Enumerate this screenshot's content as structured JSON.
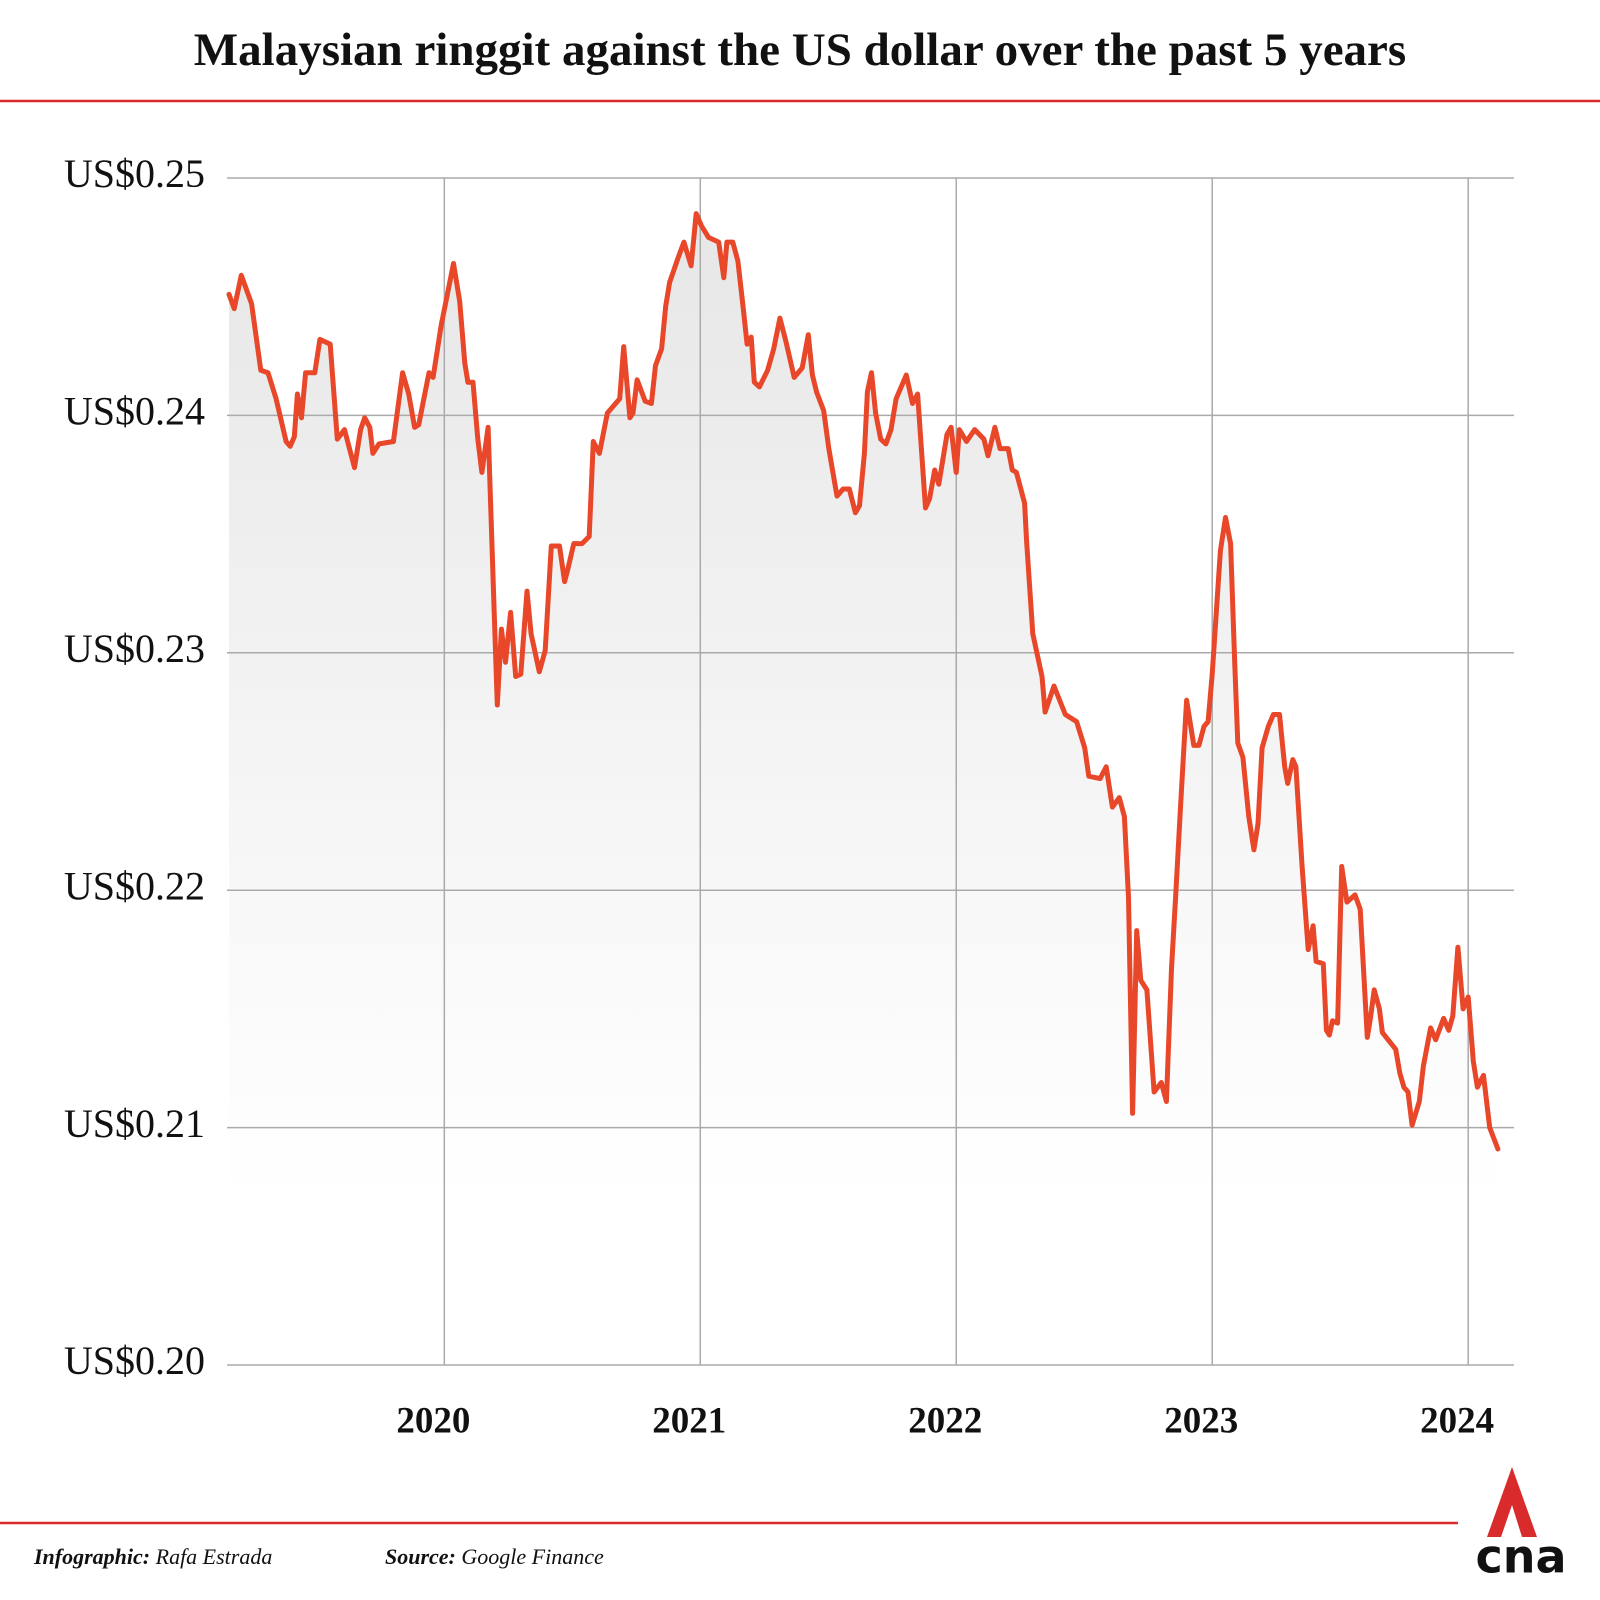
{
  "chart_data": {
    "type": "line",
    "title": "Malaysian ringgit against the US dollar over the past 5 years",
    "x": [
      2019.159,
      2019.179,
      2019.207,
      2019.247,
      2019.283,
      2019.311,
      2019.343,
      2019.382,
      2019.398,
      2019.414,
      2019.426,
      2019.442,
      2019.458,
      2019.494,
      2019.514,
      2019.554,
      2019.582,
      2019.61,
      2019.649,
      2019.673,
      2019.689,
      2019.709,
      2019.721,
      2019.745,
      2019.801,
      2019.837,
      2019.861,
      2019.884,
      2019.9,
      2019.94,
      2019.956,
      2019.988,
      2020.036,
      2020.06,
      2020.08,
      2020.092,
      2020.112,
      2020.131,
      2020.147,
      2020.171,
      2020.195,
      2020.207,
      2020.223,
      2020.239,
      2020.259,
      2020.279,
      2020.299,
      2020.323,
      2020.339,
      2020.371,
      2020.394,
      2020.418,
      2020.45,
      2020.47,
      2020.482,
      2020.506,
      2020.538,
      2020.566,
      2020.582,
      2020.606,
      2020.637,
      2020.685,
      2020.701,
      2020.725,
      2020.737,
      2020.753,
      2020.785,
      2020.809,
      2020.825,
      2020.849,
      2020.865,
      2020.88,
      2020.912,
      2020.936,
      2020.964,
      2020.984,
      2021.004,
      2021.032,
      2021.072,
      2021.092,
      2021.104,
      2021.127,
      2021.147,
      2021.167,
      2021.183,
      2021.199,
      2021.211,
      2021.231,
      2021.263,
      2021.287,
      2021.311,
      2021.335,
      2021.367,
      2021.398,
      2021.422,
      2021.438,
      2021.454,
      2021.482,
      2021.502,
      2021.534,
      2021.558,
      2021.582,
      2021.606,
      2021.622,
      2021.641,
      2021.653,
      2021.669,
      2021.685,
      2021.705,
      2021.725,
      2021.745,
      2021.765,
      2021.805,
      2021.829,
      2021.849,
      2021.88,
      2021.896,
      2021.916,
      2021.932,
      2021.964,
      2021.98,
      2022.0,
      2022.012,
      2022.04,
      2022.072,
      2022.108,
      2022.124,
      2022.151,
      2022.171,
      2022.203,
      2022.219,
      2022.235,
      2022.267,
      2022.275,
      2022.299,
      2022.319,
      2022.335,
      2022.347,
      2022.382,
      2022.426,
      2022.47,
      2022.502,
      2022.518,
      2022.562,
      2022.586,
      2022.61,
      2022.637,
      2022.657,
      2022.673,
      2022.689,
      2022.705,
      2022.721,
      2022.745,
      2022.773,
      2022.801,
      2022.821,
      2022.841,
      2022.857,
      2022.876,
      2022.9,
      2022.928,
      2022.948,
      2022.968,
      2022.984,
      2023.0,
      2023.032,
      2023.052,
      2023.072,
      2023.088,
      2023.1,
      2023.12,
      2023.143,
      2023.163,
      2023.179,
      2023.195,
      2023.219,
      2023.239,
      2023.263,
      2023.283,
      2023.295,
      2023.315,
      2023.327,
      2023.351,
      2023.375,
      2023.394,
      2023.406,
      2023.434,
      2023.446,
      2023.458,
      2023.47,
      2023.49,
      2023.506,
      2023.526,
      2023.558,
      2023.578,
      2023.606,
      2023.618,
      2023.633,
      2023.653,
      2023.665,
      2023.717,
      2023.733,
      2023.749,
      2023.765,
      2023.781,
      2023.809,
      2023.825,
      2023.853,
      2023.873,
      2023.904,
      2023.924,
      2023.94,
      2023.96,
      2023.98,
      2024.0,
      2024.02,
      2024.036,
      2024.06,
      2024.084,
      2024.116
    ],
    "series": [
      {
        "name": "MYR/USD",
        "color": "#e8472a",
        "values": [
          0.2451,
          0.2445,
          0.2459,
          0.2447,
          0.2419,
          0.2418,
          0.2407,
          0.2389,
          0.2387,
          0.2391,
          0.2409,
          0.2399,
          0.2418,
          0.2418,
          0.2432,
          0.243,
          0.239,
          0.2394,
          0.2378,
          0.2394,
          0.2399,
          0.2395,
          0.2384,
          0.2388,
          0.2389,
          0.2418,
          0.2409,
          0.2395,
          0.2396,
          0.2418,
          0.2416,
          0.2438,
          0.2464,
          0.2448,
          0.2422,
          0.2414,
          0.2414,
          0.239,
          0.2376,
          0.2395,
          0.2317,
          0.2278,
          0.231,
          0.2296,
          0.2317,
          0.229,
          0.2291,
          0.2326,
          0.2308,
          0.2292,
          0.2301,
          0.2345,
          0.2345,
          0.233,
          0.2335,
          0.2346,
          0.2346,
          0.2349,
          0.2389,
          0.2384,
          0.2401,
          0.2407,
          0.2429,
          0.2399,
          0.2401,
          0.2415,
          0.2406,
          0.2405,
          0.2421,
          0.2428,
          0.2446,
          0.2456,
          0.2466,
          0.2473,
          0.2463,
          0.2485,
          0.248,
          0.2475,
          0.2473,
          0.2458,
          0.2473,
          0.2473,
          0.2465,
          0.2446,
          0.243,
          0.2433,
          0.2414,
          0.2412,
          0.2419,
          0.2428,
          0.2441,
          0.2431,
          0.2416,
          0.242,
          0.2434,
          0.2417,
          0.241,
          0.2402,
          0.2386,
          0.2366,
          0.2369,
          0.2369,
          0.2359,
          0.2362,
          0.2384,
          0.241,
          0.2418,
          0.2401,
          0.239,
          0.2388,
          0.2394,
          0.2407,
          0.2417,
          0.2405,
          0.2409,
          0.2361,
          0.2365,
          0.2377,
          0.2371,
          0.2392,
          0.2395,
          0.2376,
          0.2394,
          0.2389,
          0.2394,
          0.239,
          0.2383,
          0.2395,
          0.2386,
          0.2386,
          0.2377,
          0.2376,
          0.2363,
          0.2347,
          0.2308,
          0.2298,
          0.229,
          0.2275,
          0.2286,
          0.2274,
          0.2271,
          0.226,
          0.2248,
          0.2247,
          0.2252,
          0.2235,
          0.2239,
          0.2231,
          0.2197,
          0.2106,
          0.2183,
          0.2162,
          0.2158,
          0.2115,
          0.2119,
          0.2111,
          0.2167,
          0.2197,
          0.2235,
          0.228,
          0.2261,
          0.2261,
          0.2269,
          0.2271,
          0.2291,
          0.2343,
          0.2357,
          0.2346,
          0.2296,
          0.2262,
          0.2256,
          0.2231,
          0.2217,
          0.2228,
          0.226,
          0.2269,
          0.2274,
          0.2274,
          0.2252,
          0.2245,
          0.2255,
          0.2252,
          0.221,
          0.2175,
          0.2185,
          0.217,
          0.2169,
          0.2141,
          0.2139,
          0.2145,
          0.2144,
          0.221,
          0.2195,
          0.2198,
          0.2192,
          0.2138,
          0.2146,
          0.2158,
          0.215,
          0.214,
          0.2133,
          0.2123,
          0.2117,
          0.2115,
          0.2101,
          0.2111,
          0.2126,
          0.2142,
          0.2137,
          0.2146,
          0.2141,
          0.2147,
          0.2176,
          0.215,
          0.2155,
          0.2128,
          0.2117,
          0.2122,
          0.21,
          0.2091
        ]
      }
    ],
    "xlim": [
      2019.151,
      2024.179
    ],
    "xticks": [
      2020,
      2021,
      2022,
      2023,
      2024
    ],
    "ylim": [
      0.2,
      0.25
    ],
    "yticks": [
      {
        "value": 0.2,
        "label": "US$0.20"
      },
      {
        "value": 0.21,
        "label": "US$0.21"
      },
      {
        "value": 0.22,
        "label": "US$0.22"
      },
      {
        "value": 0.23,
        "label": "US$0.23"
      },
      {
        "value": 0.24,
        "label": "US$0.24"
      },
      {
        "value": 0.25,
        "label": "US$0.25"
      }
    ],
    "grid": true,
    "area_fill": true
  },
  "footer": {
    "infographic_label": "Infographic:",
    "infographic": "Rafa Estrada",
    "source_label": "Source:",
    "source": "Google Finance",
    "logo": "cna"
  }
}
